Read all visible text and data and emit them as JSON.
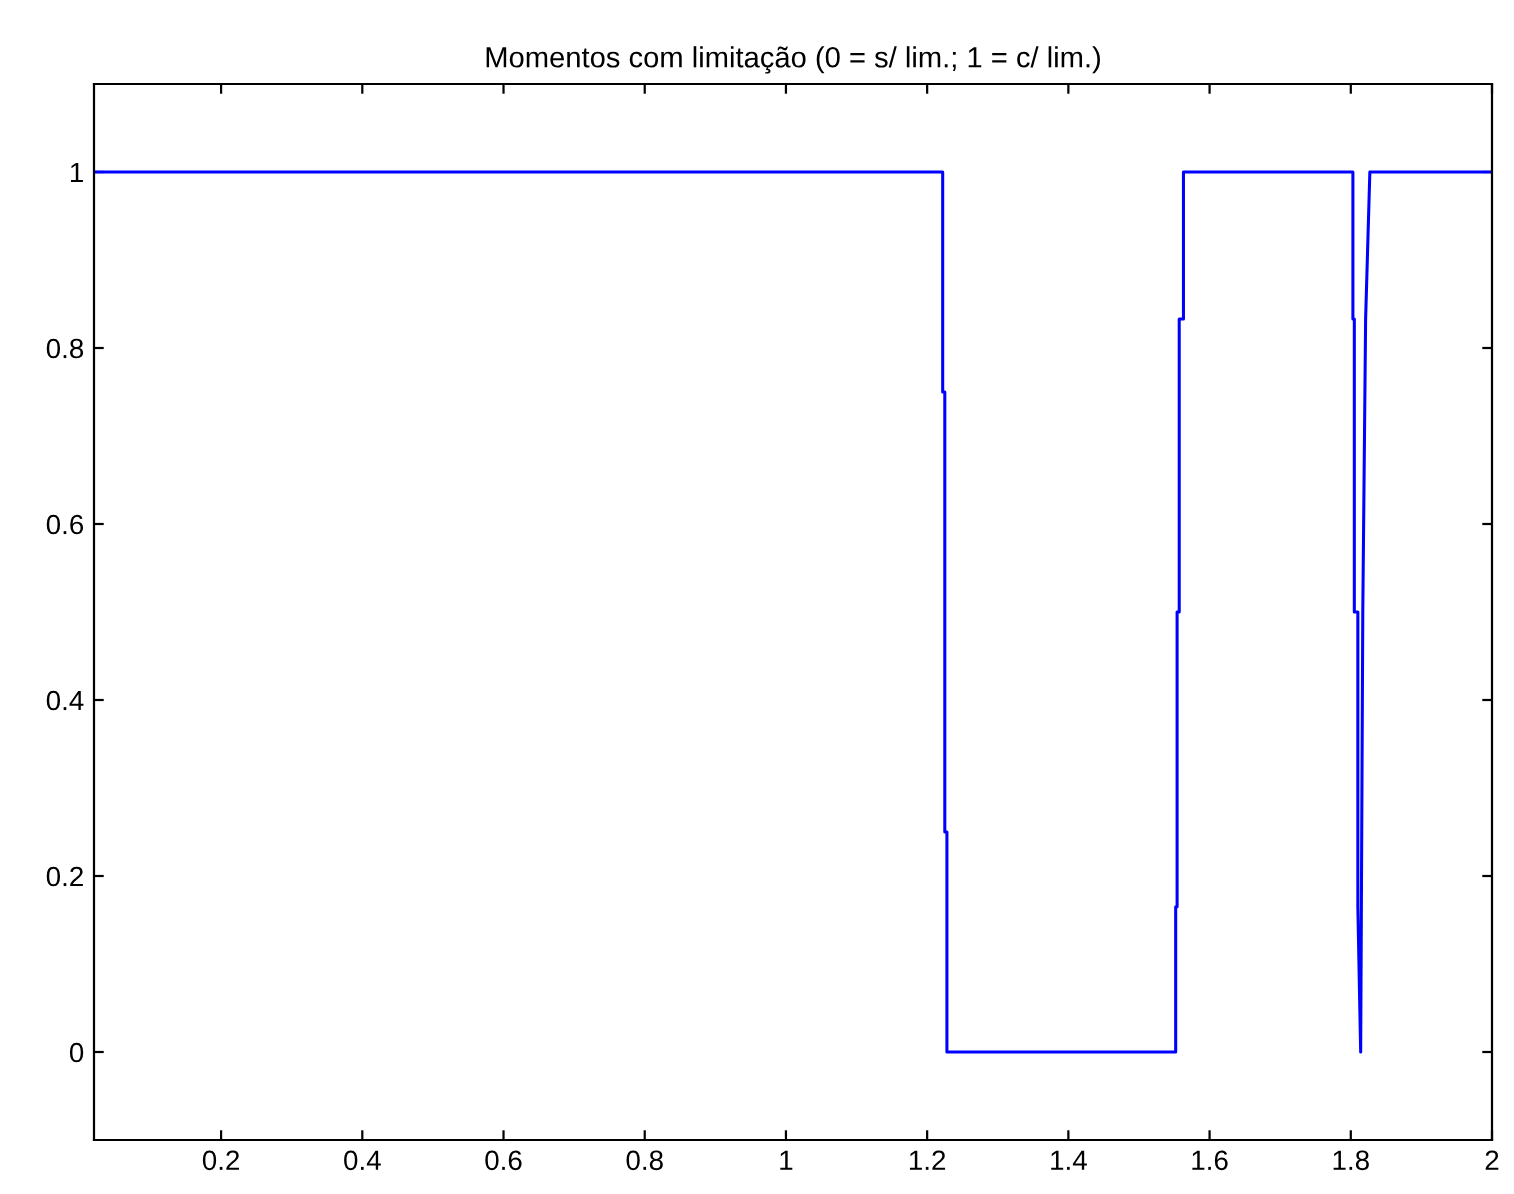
{
  "chart_data": {
    "type": "line",
    "title": "Momentos com limitação (0 = s/ lim.; 1 = c/ lim.)",
    "x": [
      0.02,
      1.222,
      1.222,
      1.225,
      1.225,
      1.228,
      1.228,
      1.552,
      1.552,
      1.554,
      1.554,
      1.557,
      1.557,
      1.563,
      1.563,
      1.803,
      1.803,
      1.805,
      1.805,
      1.81,
      1.81,
      1.814,
      1.815,
      1.815,
      1.817,
      1.817,
      1.821,
      1.821,
      1.827,
      1.827,
      2.0
    ],
    "series": [
      {
        "color": "#0000ff",
        "values": [
          1,
          1,
          0.75,
          0.75,
          0.25,
          0.25,
          0,
          0,
          0.165,
          0.165,
          0.5,
          0.5,
          0.833,
          0.833,
          1,
          1,
          0.833,
          0.833,
          0.5,
          0.5,
          0.165,
          0,
          0.165,
          0.165,
          0.5,
          0.5,
          0.833,
          0.833,
          1,
          1,
          1
        ]
      }
    ],
    "xlim": [
      0.02,
      2
    ],
    "xticks": [
      0.2,
      0.4,
      0.6,
      0.8,
      1,
      1.2,
      1.4,
      1.6,
      1.8,
      2
    ],
    "ylim": [
      -0.1,
      1.1
    ],
    "yticks": [
      0,
      0.2,
      0.4,
      0.6,
      0.8,
      1
    ],
    "grid": false,
    "legend": false,
    "marker": "none",
    "line_style": "solid"
  }
}
